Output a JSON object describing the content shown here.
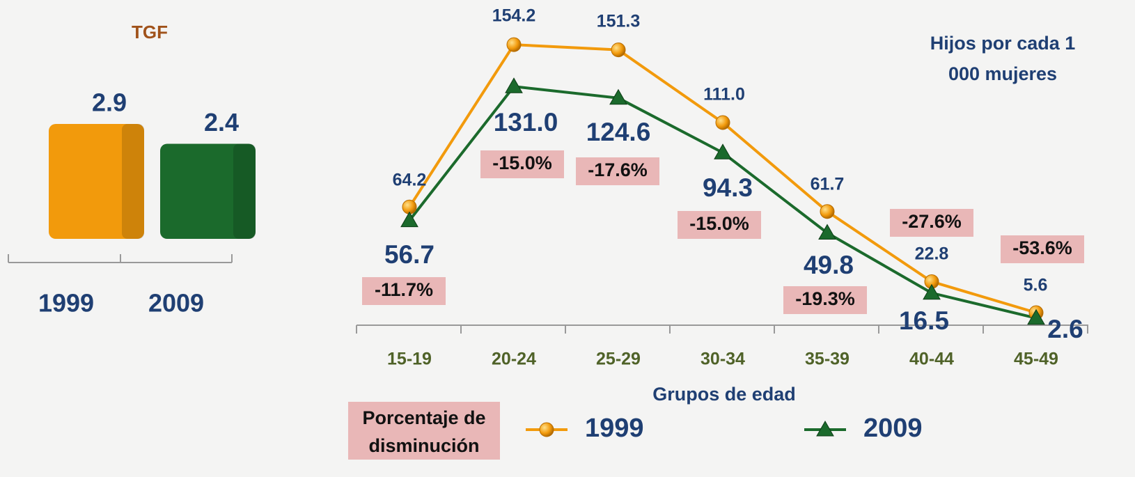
{
  "chart_data": [
    {
      "type": "bar",
      "title": "TGF",
      "categories": [
        "1999",
        "2009"
      ],
      "values": [
        2.9,
        2.4
      ],
      "colors": [
        "#f29a0c",
        "#1b6a2c"
      ]
    },
    {
      "type": "line",
      "y_label": "Hijos por cada 1 000 mujeres",
      "x_label": "Grupos de edad",
      "categories": [
        "15-19",
        "20-24",
        "25-29",
        "30-34",
        "35-39",
        "40-44",
        "45-49"
      ],
      "series": [
        {
          "name": "1999",
          "color": "#f29a0c",
          "marker": "circle",
          "values": [
            64.2,
            154.2,
            151.3,
            111.0,
            61.7,
            22.8,
            5.6
          ],
          "value_labels": [
            "64.2",
            "154.2",
            "151.3",
            "111.0",
            "61.7",
            "22.8",
            "5.6"
          ]
        },
        {
          "name": "2009",
          "color": "#1b6a2c",
          "marker": "triangle",
          "values": [
            56.7,
            131.0,
            124.6,
            94.3,
            49.8,
            16.5,
            2.6
          ],
          "value_labels": [
            "56.7",
            "131.0",
            "124.6",
            "94.3",
            "49.8",
            "16.5",
            "2.6"
          ]
        }
      ],
      "decrease": {
        "name": "Porcentaje de disminución",
        "values": [
          -11.7,
          -15.0,
          -17.6,
          -15.0,
          -19.3,
          -27.6,
          -53.6
        ],
        "value_labels": [
          "-11.7%",
          "-15.0%",
          "-17.6%",
          "-15.0%",
          "-19.3%",
          "-27.6%",
          "-53.6%"
        ]
      }
    }
  ]
}
